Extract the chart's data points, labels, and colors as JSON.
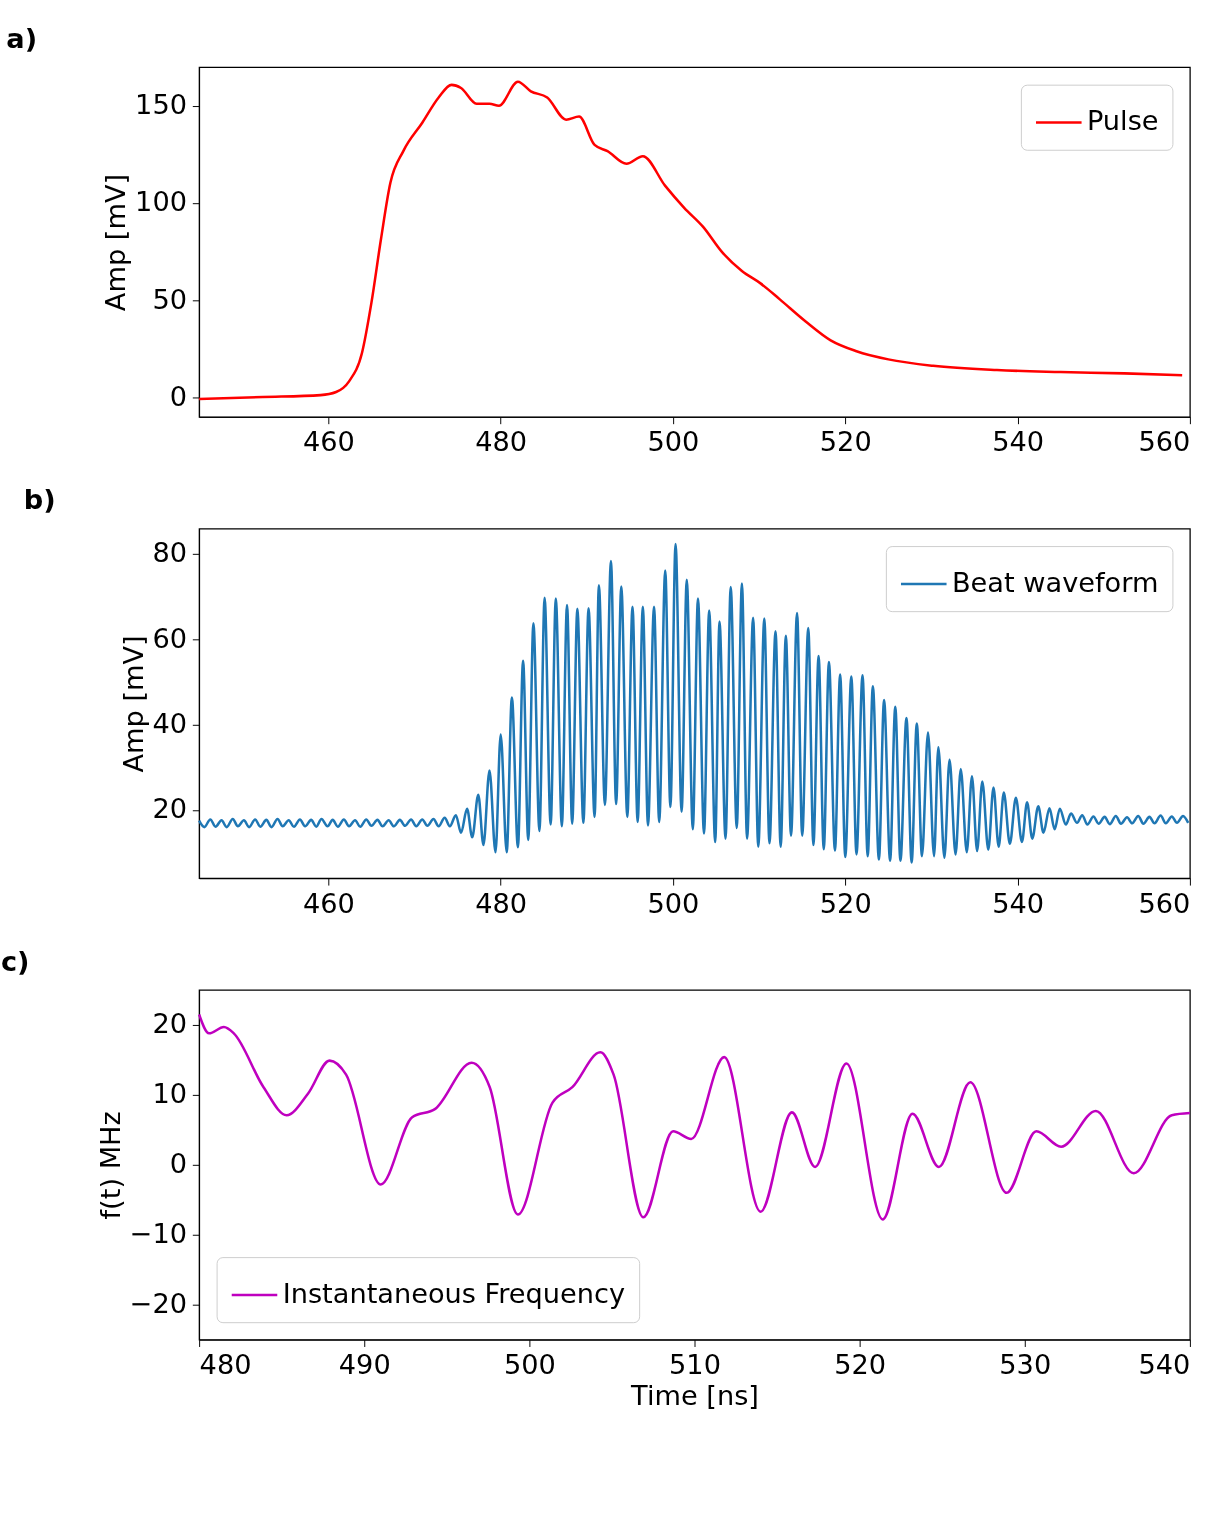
{
  "chart_data": [
    {
      "type": "line",
      "title": "a)",
      "ylabel": "Amp [mV]",
      "grid": false,
      "legend": "top right",
      "x": [
        445,
        452.4,
        459.1,
        460.9,
        462.4,
        463.9,
        465.0,
        466.1,
        467.2,
        468.7,
        470.9,
        472.8,
        474.3,
        475.4,
        477.2,
        478.7,
        479.8,
        482.0,
        483.5,
        485.4,
        487.6,
        489.1,
        490.9,
        492.4,
        494.6,
        496.5,
        499.1,
        501.3,
        503.5,
        505.7,
        508.0,
        510.2,
        512.4,
        515.4,
        518.3,
        521.3,
        525.0,
        530.2,
        537.6,
        545.0,
        552.4,
        559.1
      ],
      "series": [
        {
          "name": "Pulse",
          "color": "#ff0000",
          "values": [
            -0.8,
            0.2,
            1.2,
            2.8,
            8.3,
            22.9,
            48.8,
            81.3,
            110.5,
            126.8,
            141.4,
            154.4,
            160.9,
            159.3,
            151.2,
            151.2,
            150.2,
            162.5,
            157.6,
            154.4,
            143.0,
            144.6,
            130.0,
            126.8,
            120.3,
            124.2,
            108.9,
            97.6,
            87.8,
            74.8,
            65.1,
            58.6,
            50.5,
            39.1,
            29.4,
            23.8,
            19.6,
            16.3,
            14.1,
            13.1,
            12.4,
            11.4
          ]
        }
      ],
      "xlim": [
        445,
        560
      ],
      "xticks": [
        460,
        480,
        500,
        520,
        540,
        560
      ],
      "ylim": [
        -10,
        170
      ],
      "yticks": [
        0,
        50,
        100,
        150
      ]
    },
    {
      "type": "line",
      "title": "b)",
      "ylabel": "Amp [mV]",
      "grid": false,
      "legend": "top right",
      "x": [
        445.0,
        445.6,
        446.3,
        446.9,
        447.6,
        448.2,
        448.9,
        449.5,
        450.2,
        450.8,
        451.5,
        452.1,
        452.8,
        453.4,
        454.1,
        454.7,
        455.4,
        456.0,
        456.7,
        457.3,
        458.0,
        458.6,
        459.2,
        459.9,
        460.5,
        461.1,
        461.8,
        462.4,
        463.1,
        463.7,
        464.4,
        465.0,
        465.7,
        466.3,
        467.0,
        467.6,
        468.3,
        468.9,
        469.6,
        470.2,
        470.9,
        471.5,
        472.2,
        472.8,
        473.5,
        474.1,
        474.8,
        475.4,
        476.1,
        476.7,
        477.4,
        478.0,
        478.7,
        479.4,
        480.0,
        480.7,
        481.3,
        482.0,
        482.6,
        483.2,
        483.8,
        484.5,
        485.1,
        485.8,
        486.4,
        487.1,
        487.7,
        488.3,
        488.9,
        489.6,
        490.2,
        490.9,
        491.4,
        492.1,
        492.8,
        493.4,
        494.0,
        494.7,
        495.3,
        495.9,
        496.5,
        497.1,
        497.8,
        498.4,
        499.1,
        499.7,
        500.3,
        501.0,
        501.6,
        502.3,
        502.9,
        503.6,
        504.2,
        504.9,
        505.4,
        506.1,
        506.7,
        507.4,
        508.0,
        508.6,
        509.3,
        509.9,
        510.6,
        511.2,
        511.9,
        512.5,
        513.1,
        513.7,
        514.4,
        515.0,
        515.7,
        516.3,
        516.9,
        517.5,
        518.1,
        518.8,
        519.4,
        520.0,
        520.7,
        521.3,
        522.0,
        522.6,
        523.2,
        523.9,
        524.5,
        525.2,
        525.8,
        526.4,
        527.1,
        527.7,
        528.3,
        528.9,
        529.6,
        530.3,
        530.8,
        531.5,
        532.1,
        532.8,
        533.4,
        534.1,
        534.7,
        535.3,
        535.9,
        536.6,
        537.2,
        537.8,
        538.4,
        539.1,
        539.8,
        540.5,
        541.1,
        541.7,
        542.4,
        543.0,
        543.7,
        544.3,
        544.9,
        545.6,
        546.2,
        546.9,
        547.5,
        548.1,
        548.8,
        549.4,
        550.1,
        550.7,
        551.4,
        552.0,
        552.7,
        553.3,
        554.0,
        554.6,
        555.3,
        555.9,
        556.6,
        557.2,
        557.9,
        558.5,
        559.2,
        559.8
      ],
      "series": [
        {
          "name": "Beat waveform",
          "color": "#1f77b4",
          "values": [
            17.5,
            16.0,
            17.8,
            16.1,
            17.6,
            16.0,
            17.9,
            16.2,
            17.6,
            16.0,
            17.8,
            16.1,
            17.7,
            16.0,
            17.9,
            16.2,
            17.6,
            16.1,
            17.8,
            16.2,
            17.7,
            16.1,
            17.9,
            16.2,
            17.7,
            16.1,
            17.8,
            16.2,
            17.6,
            16.1,
            17.8,
            16.3,
            17.7,
            16.2,
            17.6,
            16.2,
            17.7,
            16.3,
            17.8,
            16.2,
            17.8,
            16.3,
            17.9,
            16.2,
            18.2,
            16.2,
            18.8,
            14.7,
            20.3,
            13.6,
            23.6,
            11.8,
            29.3,
            10.1,
            37.7,
            10.1,
            46.4,
            11.3,
            55.0,
            13.0,
            63.8,
            15.1,
            69.8,
            16.6,
            69.6,
            16.2,
            68.1,
            16.8,
            67.2,
            17.0,
            67.3,
            18.4,
            72.7,
            21.2,
            78.4,
            21.4,
            72.4,
            18.4,
            67.7,
            17.2,
            67.7,
            16.4,
            67.7,
            17.2,
            76.2,
            20.7,
            82.4,
            19.6,
            74.0,
            15.5,
            69.6,
            14.5,
            66.8,
            12.5,
            64.2,
            13.3,
            72.3,
            15.8,
            73.1,
            13.3,
            65.1,
            11.4,
            64.9,
            12.2,
            61.9,
            11.4,
            60.9,
            14.0,
            66.2,
            14.0,
            62.7,
            11.8,
            56.1,
            10.8,
            54.7,
            10.5,
            51.8,
            9.0,
            51.3,
            9.6,
            51.6,
            9.2,
            49.0,
            8.4,
            45.8,
            8.1,
            44.2,
            8.1,
            41.6,
            7.7,
            40.3,
            9.2,
            38.2,
            9.2,
            34.7,
            8.8,
            31.8,
            9.6,
            29.6,
            10.1,
            27.9,
            10.4,
            26.7,
            10.7,
            25.3,
            11.4,
            24.1,
            12.1,
            22.9,
            12.5,
            21.8,
            13.3,
            20.9,
            14.7,
            20.4,
            15.5,
            20.3,
            16.6,
            19.2,
            17.0,
            18.8,
            16.6,
            18.5,
            16.8,
            18.4,
            16.7,
            18.6,
            16.8,
            18.3,
            16.9,
            18.6,
            16.8,
            18.4,
            16.9,
            18.7,
            16.9,
            18.5,
            17.0,
            18.6,
            17.0
          ]
        }
      ],
      "xlim": [
        445,
        560
      ],
      "xticks": [
        460,
        480,
        500,
        520,
        540,
        560
      ],
      "ylim": [
        4,
        86
      ],
      "yticks": [
        20,
        40,
        60,
        80
      ]
    },
    {
      "type": "line",
      "title": "c)",
      "xlabel": "Time [ns]",
      "ylabel": "f(t) MHz",
      "grid": false,
      "legend": "bottom left",
      "x": [
        480,
        480.6,
        481.5,
        482.1,
        483.9,
        485.3,
        486.6,
        487.9,
        488.9,
        491.0,
        492.9,
        494.3,
        496.5,
        497.6,
        499.3,
        501.4,
        502.6,
        504.3,
        505.1,
        506.9,
        508.7,
        509.8,
        511.8,
        514.0,
        515.9,
        517.3,
        519.2,
        521.4,
        523.2,
        524.8,
        526.7,
        528.9,
        530.7,
        532.2,
        534.3,
        536.6,
        538.9,
        540.0
      ],
      "series": [
        {
          "name": "Instantaneous Frequency",
          "color": "#bf00bf",
          "values": [
            21.5,
            18.8,
            19.7,
            18.8,
            11.1,
            7.1,
            10.2,
            14.9,
            12.9,
            -2.8,
            6.8,
            8.0,
            14.6,
            11.1,
            -7.1,
            8.9,
            11.1,
            16.1,
            12.9,
            -7.5,
            4.8,
            3.7,
            15.4,
            -6.7,
            7.5,
            -0.3,
            14.5,
            -7.8,
            7.3,
            -0.3,
            11.8,
            -4.0,
            4.8,
            2.6,
            7.7,
            -1.2,
            7.1,
            7.4
          ]
        }
      ],
      "xlim": [
        480,
        540
      ],
      "xticks": [
        480,
        490,
        500,
        510,
        520,
        530,
        540
      ],
      "ylim": [
        -25,
        25
      ],
      "yticks": [
        {
          "value": -20,
          "label": "−20"
        },
        {
          "value": -10,
          "label": "−10"
        },
        0,
        10,
        20
      ]
    }
  ]
}
